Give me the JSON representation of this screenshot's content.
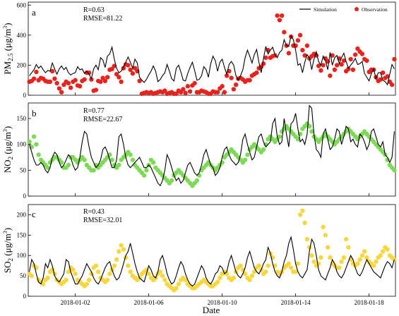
{
  "chart_data": [
    {
      "type": "line",
      "panel_label": "a",
      "ylabel_main": "PM",
      "ylabel_sub": "2.5",
      "ylabel_unit": "(μg/m",
      "ylabel_unit_sup": "3",
      "ylabel_close": ")",
      "ylim": [
        0,
        620
      ],
      "yticks": [
        0,
        200,
        400,
        600
      ],
      "stats": [
        "R=0.63",
        "RMSE=81.22"
      ],
      "legend": [
        {
          "name": "Simulation",
          "marker": "line",
          "color": "#000000"
        },
        {
          "name": "Observation",
          "marker": "dot",
          "color": "#e8231d"
        }
      ],
      "legend_position": "top-right",
      "series": [
        {
          "name": "Simulation",
          "color": "#000000",
          "values": [
            130,
            150,
            170,
            205,
            180,
            195,
            170,
            150,
            165,
            160,
            215,
            175,
            140,
            175,
            195,
            170,
            185,
            150,
            135,
            145,
            150,
            190,
            170,
            175,
            145,
            160,
            140,
            110,
            175,
            200,
            170,
            250,
            235,
            185,
            260,
            275,
            320,
            240,
            180,
            150,
            160,
            190,
            220,
            255,
            220,
            180,
            240,
            215,
            120,
            100,
            85,
            105,
            135,
            160,
            195,
            160,
            90,
            105,
            130,
            150,
            205,
            160,
            110,
            95,
            180,
            200,
            155,
            100,
            95,
            145,
            185,
            220,
            165,
            100,
            105,
            130,
            190,
            170,
            120,
            210,
            260,
            230,
            160,
            220,
            240,
            185,
            140,
            205,
            225,
            200,
            130,
            100,
            130,
            170,
            250,
            300,
            260,
            215,
            270,
            305,
            220,
            150,
            245,
            325,
            275,
            300,
            320,
            270,
            250,
            285,
            300,
            370,
            330,
            325,
            395,
            370,
            300,
            200,
            210,
            150,
            220,
            270,
            250,
            170,
            240,
            290,
            225,
            200,
            260,
            230,
            170,
            285,
            200,
            250,
            265,
            210,
            250,
            280,
            225,
            180,
            200,
            220,
            245,
            205,
            210,
            225,
            145,
            120,
            95,
            145,
            175,
            110,
            150,
            150,
            100,
            90,
            70,
            140,
            205,
            175
          ]
        },
        {
          "name": "Observation",
          "color": "#e8231d",
          "values": [
            90,
            95,
            110,
            155,
            100,
            115,
            110,
            95,
            90,
            90,
            160,
            110,
            80,
            45,
            20,
            70,
            90,
            80,
            50,
            90,
            100,
            65,
            60,
            95,
            105,
            150,
            150,
            105,
            30,
            35,
            95,
            90,
            115,
            95,
            120,
            170,
            175,
            195,
            140,
            120,
            90,
            180,
            205,
            200,
            170,
            145,
            180,
            160,
            95,
            10,
            15,
            20,
            15,
            20,
            10,
            15,
            20,
            25,
            20,
            30,
            10,
            15,
            20,
            10,
            10,
            30,
            20,
            40,
            15,
            60,
            25,
            65,
            80,
            20,
            20,
            30,
            25,
            20,
            10,
            10,
            25,
            20,
            20,
            45,
            60,
            20,
            130,
            160,
            115,
            40,
            70,
            110,
            115,
            105,
            90,
            100,
            100,
            130,
            140,
            150,
            180,
            190,
            210,
            250,
            300,
            250,
            260,
            265,
            530,
            500,
            530,
            420,
            330,
            280,
            390,
            330,
            330,
            365,
            400,
            300,
            265,
            330,
            245,
            260,
            275,
            265,
            195,
            165,
            200,
            245,
            225,
            130,
            265,
            170,
            200,
            245,
            205,
            230,
            160,
            175,
            240,
            170,
            270,
            310,
            290,
            275,
            240,
            230,
            155,
            170,
            170,
            120,
            95,
            105,
            150,
            115,
            125,
            90,
            70,
            240
          ]
        }
      ]
    },
    {
      "type": "line",
      "panel_label": "b",
      "ylabel_main": "NO",
      "ylabel_sub": "2",
      "ylabel_unit": "(μg/m",
      "ylabel_unit_sup": "3",
      "ylabel_close": ")",
      "ylim": [
        0,
        180
      ],
      "yticks": [
        0,
        50,
        100,
        150
      ],
      "stats": [
        "R=0.77",
        "RMSE=22.67"
      ],
      "series": [
        {
          "name": "Simulation",
          "color": "#000000",
          "values": [
            100,
            85,
            70,
            60,
            60,
            65,
            60,
            50,
            45,
            55,
            75,
            85,
            80,
            65,
            55,
            60,
            70,
            80,
            75,
            60,
            50,
            55,
            75,
            105,
            125,
            120,
            95,
            75,
            65,
            55,
            60,
            70,
            90,
            95,
            85,
            70,
            55,
            55,
            70,
            115,
            120,
            100,
            75,
            60,
            55,
            60,
            65,
            70,
            75,
            65,
            55,
            55,
            60,
            55,
            45,
            35,
            25,
            20,
            30,
            50,
            80,
            70,
            55,
            40,
            30,
            35,
            25,
            30,
            45,
            60,
            65,
            55,
            45,
            40,
            45,
            60,
            80,
            90,
            75,
            60,
            55,
            40,
            45,
            55,
            75,
            90,
            95,
            80,
            70,
            65,
            60,
            65,
            80,
            110,
            120,
            100,
            85,
            70,
            75,
            95,
            115,
            120,
            105,
            95,
            100,
            105,
            140,
            150,
            115,
            100,
            105,
            150,
            120,
            95,
            140,
            145,
            160,
            130,
            105,
            110,
            100,
            120,
            175,
            170,
            120,
            90,
            85,
            75,
            120,
            130,
            110,
            90,
            95,
            110,
            130,
            125,
            100,
            115,
            135,
            130,
            105,
            110,
            100,
            95,
            120,
            115,
            105,
            90,
            100,
            125,
            130,
            115,
            100,
            95,
            105,
            80,
            75,
            65,
            75,
            125
          ]
        },
        {
          "name": "Observation",
          "color": "#7ed957",
          "values": [
            105,
            95,
            115,
            100,
            80,
            70,
            65,
            60,
            55,
            65,
            70,
            75,
            75,
            70,
            65,
            55,
            55,
            60,
            75,
            75,
            70,
            65,
            70,
            75,
            70,
            60,
            55,
            50,
            50,
            60,
            55,
            60,
            65,
            70,
            75,
            80,
            70,
            60,
            55,
            60,
            70,
            75,
            80,
            85,
            80,
            70,
            60,
            55,
            50,
            45,
            40,
            50,
            60,
            70,
            65,
            55,
            50,
            45,
            40,
            35,
            30,
            25,
            30,
            40,
            45,
            50,
            45,
            40,
            35,
            30,
            25,
            20,
            25,
            30,
            40,
            50,
            55,
            60,
            65,
            60,
            55,
            50,
            55,
            60,
            65,
            75,
            80,
            85,
            90,
            85,
            80,
            75,
            70,
            65,
            70,
            80,
            90,
            95,
            100,
            95,
            90,
            85,
            90,
            100,
            110,
            115,
            110,
            105,
            110,
            115,
            125,
            130,
            135,
            130,
            125,
            120,
            115,
            110,
            120,
            130,
            135,
            140,
            135,
            125,
            115,
            110,
            105,
            110,
            115,
            120,
            115,
            110,
            105,
            100,
            105,
            110,
            115,
            120,
            125,
            130,
            125,
            120,
            115,
            110,
            115,
            120,
            125,
            120,
            115,
            110,
            105,
            100,
            95,
            90,
            85,
            80,
            70,
            60,
            55,
            50
          ]
        }
      ]
    },
    {
      "type": "line",
      "panel_label": "c",
      "ylabel_main": "SO",
      "ylabel_sub": "2",
      "ylabel_unit": "(μg/m",
      "ylabel_unit_sup": "3",
      "ylabel_close": ")",
      "ylim": [
        0,
        225
      ],
      "yticks": [
        0,
        50,
        100,
        150,
        200
      ],
      "stats": [
        "R=0.43",
        "RMSE=32.01"
      ],
      "series": [
        {
          "name": "Simulation",
          "color": "#000000",
          "values": [
            60,
            90,
            80,
            55,
            35,
            30,
            45,
            80,
            70,
            90,
            75,
            50,
            40,
            35,
            45,
            55,
            90,
            85,
            60,
            45,
            30,
            30,
            40,
            50,
            65,
            80,
            70,
            60,
            45,
            35,
            30,
            40,
            55,
            70,
            80,
            85,
            65,
            50,
            40,
            45,
            60,
            80,
            100,
            110,
            130,
            105,
            80,
            60,
            45,
            40,
            35,
            55,
            75,
            65,
            50,
            45,
            60,
            90,
            100,
            80,
            55,
            40,
            30,
            35,
            50,
            70,
            85,
            75,
            55,
            40,
            30,
            25,
            30,
            45,
            60,
            75,
            65,
            45,
            35,
            30,
            40,
            55,
            60,
            75,
            70,
            55,
            60,
            85,
            100,
            80,
            60,
            50,
            45,
            55,
            70,
            95,
            110,
            90,
            70,
            60,
            55,
            65,
            80,
            90,
            120,
            105,
            80,
            60,
            50,
            45,
            60,
            85,
            100,
            130,
            145,
            115,
            80,
            60,
            50,
            45,
            55,
            65,
            110,
            140,
            130,
            100,
            65,
            50,
            45,
            40,
            55,
            70,
            90,
            80,
            60,
            50,
            45,
            55,
            70,
            85,
            100,
            90,
            70,
            55,
            50,
            60,
            75,
            90,
            80,
            70,
            60,
            55,
            50,
            45,
            60,
            75,
            85,
            80,
            70,
            90
          ]
        },
        {
          "name": "Observation",
          "color": "#f7d740",
          "values": [
            55,
            50,
            75,
            70,
            40,
            35,
            30,
            40,
            45,
            60,
            65,
            55,
            40,
            35,
            30,
            35,
            40,
            60,
            70,
            65,
            55,
            40,
            35,
            30,
            25,
            30,
            40,
            55,
            70,
            75,
            60,
            45,
            40,
            35,
            40,
            55,
            65,
            75,
            90,
            110,
            125,
            115,
            95,
            75,
            60,
            50,
            45,
            40,
            45,
            55,
            60,
            65,
            55,
            45,
            40,
            45,
            55,
            60,
            50,
            40,
            30,
            25,
            20,
            15,
            20,
            30,
            40,
            45,
            40,
            30,
            25,
            20,
            20,
            25,
            30,
            35,
            40,
            35,
            30,
            25,
            25,
            30,
            35,
            45,
            55,
            60,
            55,
            45,
            40,
            45,
            60,
            70,
            75,
            65,
            55,
            45,
            40,
            50,
            60,
            70,
            75,
            65,
            55,
            60,
            75,
            105,
            95,
            75,
            60,
            55,
            60,
            70,
            75,
            80,
            70,
            60,
            60,
            80,
            200,
            210,
            180,
            140,
            120,
            100,
            85,
            75,
            80,
            95,
            170,
            150,
            120,
            95,
            80,
            75,
            70,
            70,
            85,
            95,
            140,
            120,
            90,
            80,
            75,
            80,
            90,
            100,
            110,
            95,
            85,
            80,
            75,
            85,
            95,
            100,
            110,
            120,
            115,
            100,
            95,
            90
          ]
        }
      ]
    }
  ],
  "x_axis": {
    "label": "Date",
    "n_points": 160,
    "tick_labels": [
      "2018-01-02",
      "2018-01-06",
      "2018-01-10",
      "2018-01-14",
      "2018-01-18"
    ],
    "tick_index": [
      20,
      52,
      84,
      116,
      148
    ]
  }
}
